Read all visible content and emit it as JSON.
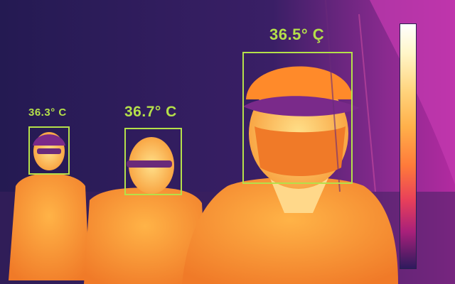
{
  "scene": {
    "colors": {
      "background": "#241a52",
      "box": "#b5e04a",
      "hot": "#ffb347",
      "warm": "#ff7f2a"
    }
  },
  "detections": [
    {
      "id": "person-1",
      "temperature": "36.3° C"
    },
    {
      "id": "person-2",
      "temperature": "36.7° C"
    },
    {
      "id": "person-3",
      "temperature": "36.5° Ç"
    }
  ],
  "scale": {
    "gradient": "white-yellow-orange-red-magenta-purple",
    "icon": "thermal-scale-bar"
  }
}
